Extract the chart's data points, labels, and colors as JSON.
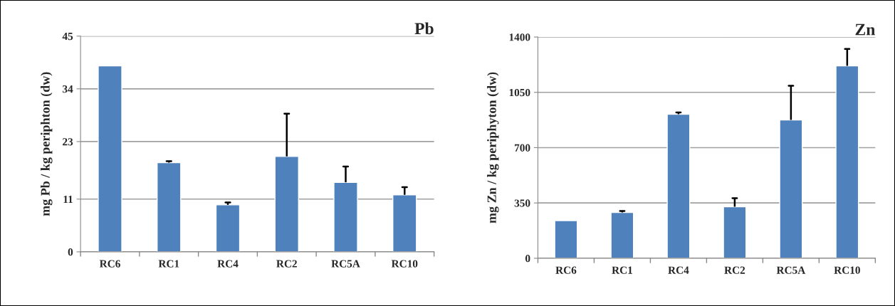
{
  "chart_data": [
    {
      "type": "bar",
      "title": "Pb",
      "ylabel": "mg Pb / kg periphton (dw)",
      "categories": [
        "RC6",
        "RC1",
        "RC4",
        "RC2",
        "RC5A",
        "RC10"
      ],
      "color": "#4f81bd",
      "values": [
        38.8,
        18.6,
        9.8,
        19.9,
        14.5,
        11.9
      ],
      "errors": [
        null,
        [
          18.6,
          18.9
        ],
        [
          9.8,
          10.3
        ],
        [
          19.9,
          28.8
        ],
        [
          14.5,
          17.8
        ],
        [
          11.9,
          13.5
        ]
      ],
      "ylim": [
        0,
        45
      ],
      "yticks": [
        0,
        11,
        23,
        34,
        45
      ],
      "grid": "y"
    },
    {
      "type": "bar",
      "title": "Zn",
      "ylabel": "mg Zn / kg periphyton (dw)",
      "categories": [
        "RC6",
        "RC1",
        "RC4",
        "RC2",
        "RC5A",
        "RC10"
      ],
      "color": "#4f81bd",
      "values": [
        238,
        290,
        911,
        326,
        875,
        1218
      ],
      "errors": [
        null,
        [
          290,
          299
        ],
        [
          911,
          923
        ],
        [
          326,
          380
        ],
        [
          875,
          1092
        ],
        [
          1218,
          1325
        ]
      ],
      "ylim": [
        0,
        1400
      ],
      "yticks": [
        0,
        350,
        700,
        1050,
        1400
      ],
      "grid": "y"
    }
  ]
}
